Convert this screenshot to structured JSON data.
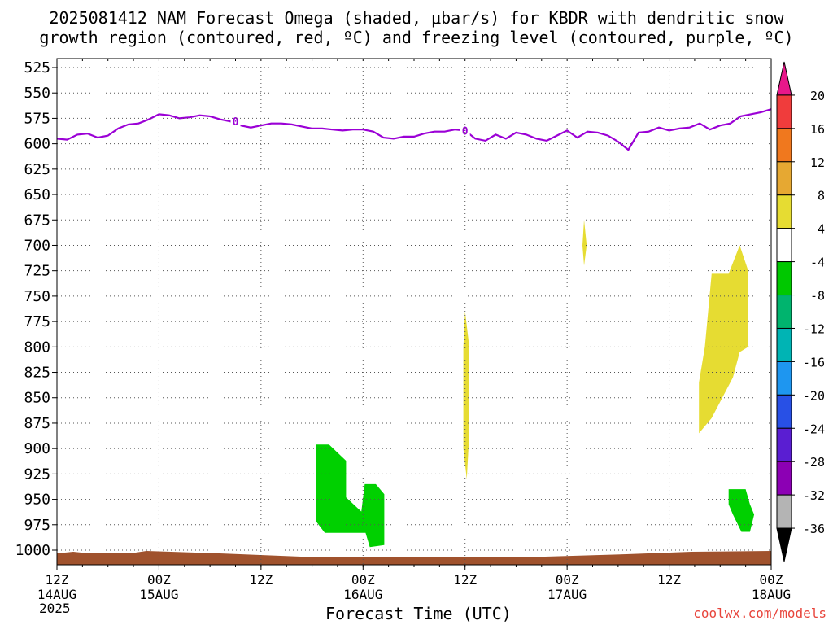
{
  "title_line1": "2025081412 NAM Forecast Omega (shaded, μbar/s) for KBDR with dendritic snow",
  "title_line2": "growth region (contoured, red, ºC) and freezing level (contoured, purple, ºC)",
  "credit": "coolwx.com/models",
  "colors": {
    "freezing": "#9b00d6",
    "green": "#00d000",
    "yellow": "#e6dc32",
    "ground": "#a0522d"
  },
  "chart_data": {
    "type": "heatmap",
    "xlabel": "Forecast Time (UTC)",
    "ylabel": "",
    "x_range_hours": [
      0,
      84
    ],
    "x_ticks": [
      {
        "h": 0,
        "l1": "12Z",
        "l2": "14AUG",
        "l3": "2025"
      },
      {
        "h": 12,
        "l1": "00Z",
        "l2": "15AUG"
      },
      {
        "h": 24,
        "l1": "12Z"
      },
      {
        "h": 36,
        "l1": "00Z",
        "l2": "16AUG"
      },
      {
        "h": 48,
        "l1": "12Z"
      },
      {
        "h": 60,
        "l1": "00Z",
        "l2": "17AUG"
      },
      {
        "h": 72,
        "l1": "12Z"
      },
      {
        "h": 84,
        "l1": "00Z",
        "l2": "18AUG"
      }
    ],
    "y_ticks": [
      525,
      550,
      575,
      600,
      625,
      650,
      675,
      700,
      725,
      750,
      775,
      800,
      825,
      850,
      875,
      900,
      925,
      950,
      975,
      1000
    ],
    "y_range_mb": [
      515,
      1020
    ],
    "freezing_level": {
      "label": "0",
      "hours": [
        0,
        1.2,
        2.4,
        3.6,
        4.8,
        6,
        7.2,
        8.4,
        9.6,
        10.8,
        12,
        13.2,
        14.4,
        15.6,
        16.8,
        18,
        19.2,
        20.4,
        21.6,
        22.8,
        24,
        25.2,
        26.4,
        27.6,
        28.8,
        30,
        31.2,
        32.4,
        33.6,
        34.8,
        36,
        37.2,
        38.4,
        39.6,
        40.8,
        42,
        43.2,
        44.4,
        45.6,
        46.8,
        48,
        49.2,
        50.4,
        51.6,
        52.8,
        54,
        55.2,
        56.4,
        57.6,
        58.8,
        60,
        61.2,
        62.4,
        63.6,
        64.8,
        66,
        67.2,
        68.4,
        69.6,
        70.8,
        72,
        73.2,
        74.4,
        75.6,
        76.8,
        78,
        79.2,
        80.4,
        81.6,
        82.8,
        84
      ],
      "mb": [
        595,
        596,
        591,
        590,
        594,
        592,
        585,
        581,
        580,
        576,
        571,
        572,
        575,
        574,
        572,
        573,
        576,
        578,
        582,
        584,
        582,
        580,
        580,
        581,
        583,
        585,
        585,
        586,
        587,
        586,
        586,
        588,
        594,
        595,
        593,
        593,
        590,
        588,
        588,
        586,
        587,
        595,
        597,
        591,
        595,
        589,
        591,
        595,
        597,
        592,
        587,
        594,
        588,
        589,
        592,
        598,
        606,
        589,
        588,
        584,
        587,
        585,
        584,
        580,
        586,
        582,
        580,
        573,
        571,
        569,
        566
      ],
      "label_hours": [
        21,
        48
      ]
    },
    "omega_regions": [
      {
        "range": "-8 to -4",
        "color": "green",
        "polygon": [
          [
            30.5,
            896
          ],
          [
            32.0,
            896
          ],
          [
            34.0,
            912
          ],
          [
            34.0,
            948
          ],
          [
            35.8,
            962
          ],
          [
            36.2,
            935
          ],
          [
            37.5,
            935
          ],
          [
            38.5,
            945
          ],
          [
            38.5,
            995
          ],
          [
            36.8,
            997
          ],
          [
            36.3,
            983
          ],
          [
            31.5,
            983
          ],
          [
            30.5,
            972
          ]
        ]
      },
      {
        "range": "-8 to -4",
        "color": "green",
        "polygon": [
          [
            79.0,
            940
          ],
          [
            81.0,
            940
          ],
          [
            81.5,
            955
          ],
          [
            82.0,
            965
          ],
          [
            81.5,
            982
          ],
          [
            80.5,
            982
          ],
          [
            79.5,
            965
          ],
          [
            79.0,
            955
          ]
        ]
      },
      {
        "range": "4 to 8",
        "color": "yellow",
        "polygon": [
          [
            48.0,
            765
          ],
          [
            48.5,
            800
          ],
          [
            48.5,
            885
          ],
          [
            48.2,
            930
          ],
          [
            47.8,
            900
          ],
          [
            47.8,
            800
          ]
        ]
      },
      {
        "range": "4 to 8",
        "color": "yellow",
        "polygon": [
          [
            62.0,
            675
          ],
          [
            62.3,
            700
          ],
          [
            62.0,
            720
          ],
          [
            61.8,
            700
          ]
        ]
      },
      {
        "range": "4 to 8",
        "color": "yellow",
        "polygon": [
          [
            77.0,
            728
          ],
          [
            79.0,
            728
          ],
          [
            80.3,
            700
          ],
          [
            81.3,
            725
          ],
          [
            81.3,
            800
          ],
          [
            80.3,
            805
          ],
          [
            79.5,
            830
          ],
          [
            77.0,
            870
          ],
          [
            75.5,
            885
          ],
          [
            75.5,
            835
          ],
          [
            76.2,
            800
          ]
        ]
      }
    ],
    "colorbar": {
      "labels": [
        "20",
        "16",
        "12",
        "8",
        "4",
        "-4",
        "-8",
        "-12",
        "-16",
        "-20",
        "-24",
        "-28",
        "-32",
        "-36"
      ],
      "colors": [
        "#e8178a",
        "#f03c3c",
        "#f0781e",
        "#e6a832",
        "#e6dc32",
        "#ffffff",
        "#00c800",
        "#00b46e",
        "#00b4b4",
        "#1e96f0",
        "#2850e6",
        "#5a1ed2",
        "#8c00b4",
        "#b4b4b4",
        "#000000"
      ]
    }
  }
}
